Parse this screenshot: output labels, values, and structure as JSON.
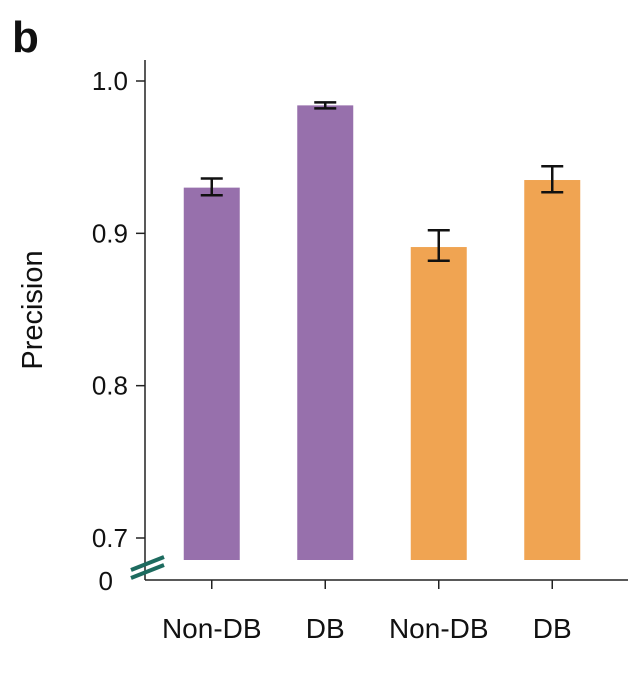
{
  "panel_label": "b",
  "chart_data": {
    "type": "bar",
    "title": "",
    "xlabel": "",
    "ylabel": "Precision",
    "ylim": [
      0.7,
      1.0
    ],
    "axis_break": true,
    "baseline_label": "0",
    "yticks": [
      {
        "value": 1.0,
        "label": "1.0"
      },
      {
        "value": 0.9,
        "label": "0.9"
      },
      {
        "value": 0.8,
        "label": "0.8"
      },
      {
        "value": 0.7,
        "label": "0.7"
      }
    ],
    "categories": [
      "Non-DB",
      "DB",
      "Non-DB",
      "DB"
    ],
    "values": [
      0.93,
      0.984,
      0.891,
      0.935
    ],
    "error_low": [
      0.925,
      0.982,
      0.882,
      0.927
    ],
    "error_high": [
      0.936,
      0.986,
      0.902,
      0.944
    ],
    "colors": [
      "#9770ac",
      "#9770ac",
      "#f0a452",
      "#f0a452"
    ],
    "break_mark_color": "#1d6b5f",
    "grid": false,
    "legend": "none"
  }
}
